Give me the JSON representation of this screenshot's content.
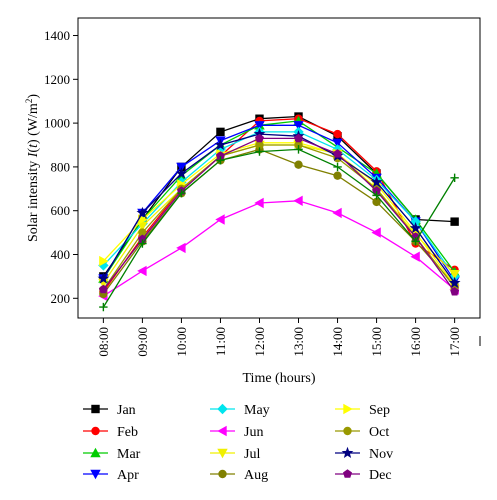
{
  "chart_data": {
    "type": "line",
    "title": "",
    "xlabel": "Time (hours)",
    "ylabel_prefix": "Solar intensity ",
    "ylabel_var": "I",
    "ylabel_mid": "(",
    "ylabel_arg": "t",
    "ylabel_suffix_a": ") (W/m",
    "ylabel_sup": "2",
    "ylabel_suffix_b": ")",
    "categories": [
      "08:00",
      "09:00",
      "10:00",
      "11:00",
      "12:00",
      "13:00",
      "14:00",
      "15:00",
      "16:00",
      "17:00"
    ],
    "yticks": [
      200,
      400,
      600,
      800,
      1000,
      1200,
      1400
    ],
    "ylim": [
      110,
      1480
    ],
    "grid": false,
    "legend_position": "below",
    "series": [
      {
        "name": "Jan",
        "color": "#000000",
        "marker": "square",
        "values": [
          300,
          560,
          800,
          960,
          1020,
          1030,
          940,
          770,
          560,
          550
        ],
        "last_index": 9
      },
      {
        "name": "Feb",
        "color": "#ff0000",
        "marker": "circle",
        "values": [
          230,
          480,
          700,
          850,
          1010,
          1020,
          950,
          780,
          450,
          330
        ]
      },
      {
        "name": "Mar",
        "color": "#00cc00",
        "marker": "triangle-up",
        "values": [
          290,
          560,
          760,
          900,
          990,
          1010,
          890,
          770,
          560,
          320
        ]
      },
      {
        "name": "Apr",
        "color": "#0000ff",
        "marker": "triangle-down",
        "values": [
          290,
          590,
          800,
          920,
          990,
          990,
          910,
          750,
          550,
          280
        ]
      },
      {
        "name": "May",
        "color": "#00e5ee",
        "marker": "diamond",
        "values": [
          350,
          540,
          730,
          880,
          960,
          960,
          880,
          740,
          550,
          300
        ]
      },
      {
        "name": "Jun",
        "color": "#ff00ff",
        "marker": "triangle-left",
        "values": [
          210,
          325,
          430,
          560,
          635,
          645,
          590,
          500,
          390,
          240
        ]
      },
      {
        "name": "Jul",
        "color": "#f0f000",
        "marker": "triangle-down",
        "values": [
          270,
          530,
          700,
          850,
          900,
          900,
          860,
          700,
          490,
          310
        ]
      },
      {
        "name": "Aug",
        "color": "#808000",
        "marker": "circle",
        "values": [
          220,
          460,
          680,
          830,
          880,
          810,
          760,
          640,
          460,
          260
        ]
      },
      {
        "name": "Sep",
        "color": "#ffff00",
        "marker": "triangle-right",
        "values": [
          370,
          560,
          720,
          860,
          910,
          910,
          860,
          720,
          500,
          260
        ]
      },
      {
        "name": "Oct",
        "color": "#999900",
        "marker": "circle",
        "values": [
          240,
          500,
          700,
          850,
          900,
          900,
          840,
          700,
          480,
          250
        ]
      },
      {
        "name": "Nov",
        "color": "#000080",
        "marker": "star",
        "values": [
          290,
          590,
          770,
          900,
          950,
          940,
          850,
          730,
          520,
          270
        ]
      },
      {
        "name": "Dec",
        "color": "#800080",
        "marker": "pentagon",
        "values": [
          240,
          470,
          690,
          850,
          930,
          930,
          860,
          690,
          480,
          230
        ]
      },
      {
        "name": "",
        "color": "#008000",
        "marker": "plus",
        "values": [
          160,
          450,
          680,
          830,
          870,
          880,
          800,
          670,
          460,
          750
        ],
        "in_legend": false
      }
    ]
  }
}
